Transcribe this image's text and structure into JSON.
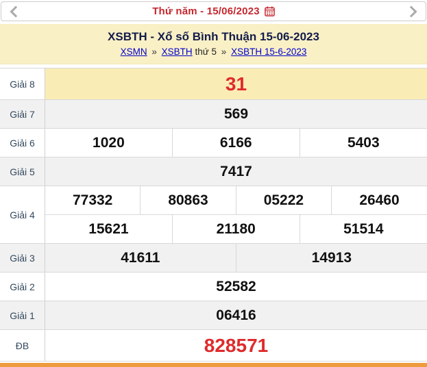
{
  "nav": {
    "date_label": "Thứ năm - 15/06/2023",
    "prev_icon": "chevron-left-icon",
    "next_icon": "chevron-right-icon",
    "calendar_icon": "calendar-icon"
  },
  "header": {
    "title": "XSBTH - Xổ số Bình Thuận 15-06-2023",
    "breadcrumb": {
      "link1": "XSMN",
      "sep1": "»",
      "link2": "XSBTH",
      "middle": "thứ 5",
      "sep2": "»",
      "link3": "XSBTH 15-6-2023"
    }
  },
  "results_table": {
    "rows": [
      {
        "label": "Giải 8",
        "cells": [
          [
            "31"
          ]
        ],
        "tone": "white",
        "value_style": "red-big",
        "highlight": true
      },
      {
        "label": "Giải 7",
        "cells": [
          [
            "569"
          ]
        ],
        "tone": "gray"
      },
      {
        "label": "Giải 6",
        "cells": [
          [
            "1020",
            "6166",
            "5403"
          ]
        ],
        "tone": "white"
      },
      {
        "label": "Giải 5",
        "cells": [
          [
            "7417"
          ]
        ],
        "tone": "gray"
      },
      {
        "label": "Giải 4",
        "cells": [
          [
            "77332",
            "80863",
            "05222",
            "26460"
          ],
          [
            "15621",
            "21180",
            "51514"
          ]
        ],
        "tone": "white"
      },
      {
        "label": "Giải 3",
        "cells": [
          [
            "41611",
            "14913"
          ]
        ],
        "tone": "gray"
      },
      {
        "label": "Giải 2",
        "cells": [
          [
            "52582"
          ]
        ],
        "tone": "white"
      },
      {
        "label": "Giải 1",
        "cells": [
          [
            "06416"
          ]
        ],
        "tone": "gray"
      },
      {
        "label": "ĐB",
        "cells": [
          [
            "828571"
          ]
        ],
        "tone": "white",
        "value_style": "red-big"
      }
    ]
  },
  "colors": {
    "accent_red": "#df2b2b",
    "date_red": "#c5272e",
    "title_navy": "#131c4a",
    "link_blue": "#0000cc",
    "header_yellow": "#faf0c6",
    "highlight_yellow": "#faecb5",
    "gray_row": "#f1f1f1",
    "orange_bar": "#ee9b3e"
  }
}
